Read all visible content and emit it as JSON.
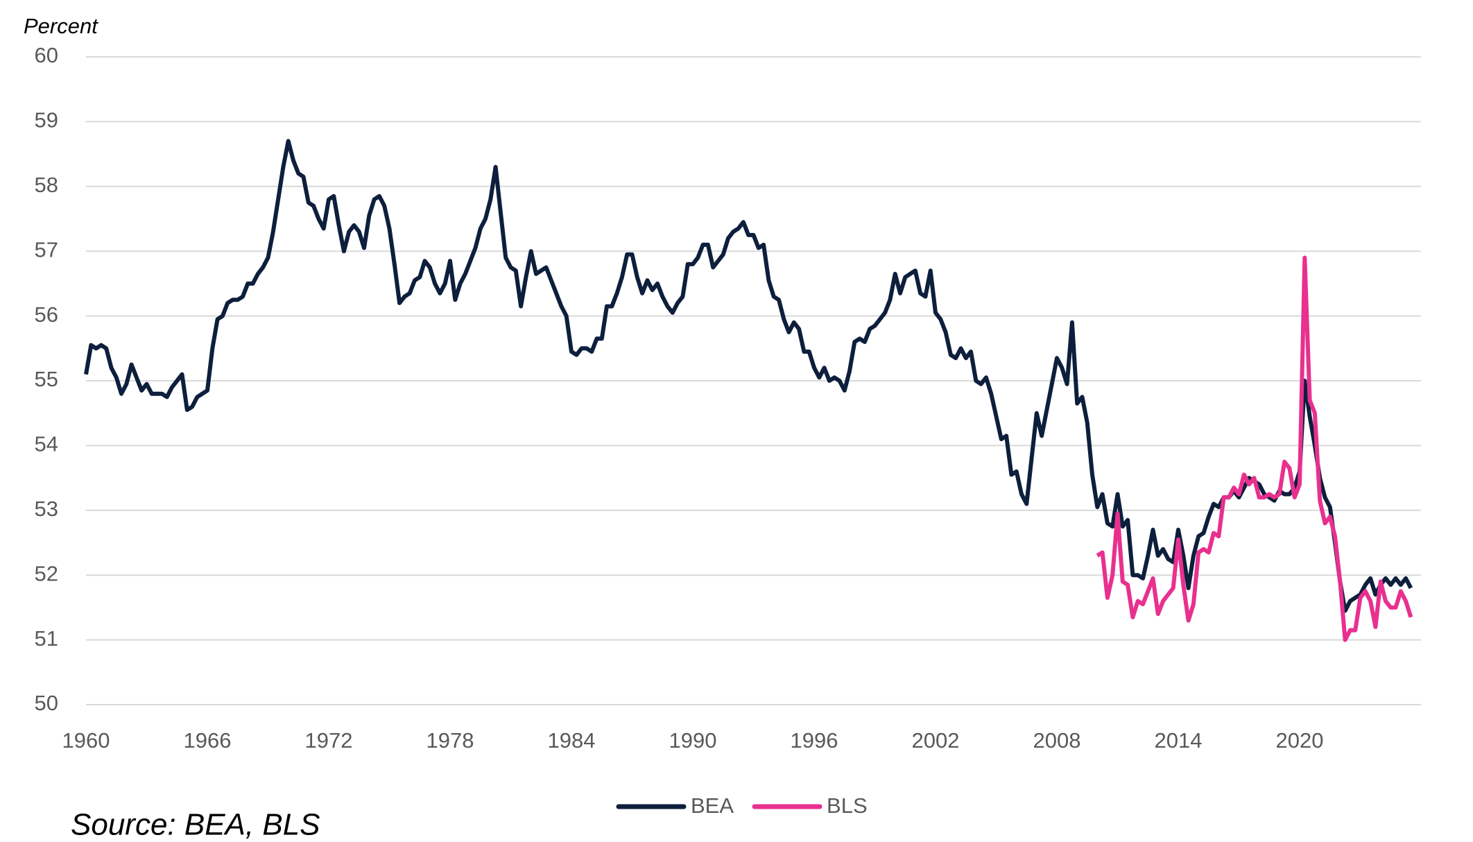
{
  "chart_data": {
    "type": "line",
    "y_axis_label": "Percent",
    "source": "Source: BEA, BLS",
    "xlim": [
      1960,
      2026
    ],
    "xticks": [
      1960,
      1966,
      1972,
      1978,
      1984,
      1990,
      1996,
      2002,
      2008,
      2014,
      2020
    ],
    "ylim": [
      50,
      60
    ],
    "yticks": [
      50,
      51,
      52,
      53,
      54,
      55,
      56,
      57,
      58,
      59,
      60
    ],
    "grid": true,
    "legend": "bottom",
    "series": [
      {
        "name": "BEA",
        "color": "#0d1f3c",
        "x": [
          1960,
          1960.25,
          1960.5,
          1960.75,
          1961,
          1961.25,
          1961.5,
          1961.75,
          1962,
          1962.25,
          1962.5,
          1962.75,
          1963,
          1963.25,
          1963.5,
          1963.75,
          1964,
          1964.25,
          1964.5,
          1964.75,
          1965,
          1965.25,
          1965.5,
          1965.75,
          1966,
          1966.25,
          1966.5,
          1966.75,
          1967,
          1967.25,
          1967.5,
          1967.75,
          1968,
          1968.25,
          1968.5,
          1968.75,
          1969,
          1969.25,
          1969.5,
          1969.75,
          1970,
          1970.25,
          1970.5,
          1970.75,
          1971,
          1971.25,
          1971.5,
          1971.75,
          1972,
          1972.25,
          1972.5,
          1972.75,
          1973,
          1973.25,
          1973.5,
          1973.75,
          1974,
          1974.25,
          1974.5,
          1974.75,
          1975,
          1975.25,
          1975.5,
          1975.75,
          1976,
          1976.25,
          1976.5,
          1976.75,
          1977,
          1977.25,
          1977.5,
          1977.75,
          1978,
          1978.25,
          1978.5,
          1978.75,
          1979,
          1979.25,
          1979.5,
          1979.75,
          1980,
          1980.25,
          1980.5,
          1980.75,
          1981,
          1981.25,
          1981.5,
          1981.75,
          1982,
          1982.25,
          1982.5,
          1982.75,
          1983,
          1983.25,
          1983.5,
          1983.75,
          1984,
          1984.25,
          1984.5,
          1984.75,
          1985,
          1985.25,
          1985.5,
          1985.75,
          1986,
          1986.25,
          1986.5,
          1986.75,
          1987,
          1987.25,
          1987.5,
          1987.75,
          1988,
          1988.25,
          1988.5,
          1988.75,
          1989,
          1989.25,
          1989.5,
          1989.75,
          1990,
          1990.25,
          1990.5,
          1990.75,
          1991,
          1991.25,
          1991.5,
          1991.75,
          1992,
          1992.25,
          1992.5,
          1992.75,
          1993,
          1993.25,
          1993.5,
          1993.75,
          1994,
          1994.25,
          1994.5,
          1994.75,
          1995,
          1995.25,
          1995.5,
          1995.75,
          1996,
          1996.25,
          1996.5,
          1996.75,
          1997,
          1997.25,
          1997.5,
          1997.75,
          1998,
          1998.25,
          1998.5,
          1998.75,
          1999,
          1999.25,
          1999.5,
          1999.75,
          2000,
          2000.25,
          2000.5,
          2000.75,
          2001,
          2001.25,
          2001.5,
          2001.75,
          2002,
          2002.25,
          2002.5,
          2002.75,
          2003,
          2003.25,
          2003.5,
          2003.75,
          2004,
          2004.25,
          2004.5,
          2004.75,
          2005,
          2005.25,
          2005.5,
          2005.75,
          2006,
          2006.25,
          2006.5,
          2006.75,
          2007,
          2007.25,
          2007.5,
          2007.75,
          2008,
          2008.25,
          2008.5,
          2008.75,
          2009,
          2009.25,
          2009.5,
          2009.75,
          2010,
          2010.25,
          2010.5,
          2010.75,
          2011,
          2011.25,
          2011.5,
          2011.75,
          2012,
          2012.25,
          2012.5,
          2012.75,
          2013,
          2013.25,
          2013.5,
          2013.75,
          2014,
          2014.25,
          2014.5,
          2014.75,
          2015,
          2015.25,
          2015.5,
          2015.75,
          2016,
          2016.25,
          2016.5,
          2016.75,
          2017,
          2017.25,
          2017.5,
          2017.75,
          2018,
          2018.25,
          2018.5,
          2018.75,
          2019,
          2019.25,
          2019.5,
          2019.75,
          2020,
          2020.25,
          2020.5,
          2020.75,
          2021,
          2021.25,
          2021.5,
          2021.75,
          2022,
          2022.25,
          2022.5,
          2022.75,
          2023,
          2023.25,
          2023.5,
          2023.75,
          2024,
          2024.25,
          2024.5,
          2024.75,
          2025,
          2025.25,
          2025.5
        ],
        "values": [
          55.1,
          55.55,
          55.5,
          55.55,
          55.5,
          55.2,
          55.05,
          54.8,
          54.95,
          55.25,
          55.05,
          54.85,
          54.95,
          54.8,
          54.8,
          54.8,
          54.75,
          54.9,
          55.0,
          55.1,
          54.55,
          54.6,
          54.75,
          54.8,
          54.85,
          55.5,
          55.95,
          56.0,
          56.2,
          56.25,
          56.25,
          56.3,
          56.5,
          56.5,
          56.65,
          56.75,
          56.9,
          57.3,
          57.8,
          58.3,
          58.7,
          58.4,
          58.2,
          58.15,
          57.75,
          57.7,
          57.5,
          57.35,
          57.8,
          57.85,
          57.4,
          57.0,
          57.3,
          57.4,
          57.3,
          57.05,
          57.55,
          57.8,
          57.85,
          57.7,
          57.35,
          56.8,
          56.2,
          56.3,
          56.35,
          56.55,
          56.6,
          56.85,
          56.75,
          56.5,
          56.35,
          56.5,
          56.85,
          56.25,
          56.5,
          56.65,
          56.85,
          57.05,
          57.35,
          57.5,
          57.8,
          58.3,
          57.6,
          56.9,
          56.75,
          56.7,
          56.15,
          56.6,
          57.0,
          56.65,
          56.7,
          56.75,
          56.55,
          56.35,
          56.15,
          56.0,
          55.45,
          55.4,
          55.5,
          55.5,
          55.45,
          55.65,
          55.65,
          56.15,
          56.15,
          56.35,
          56.6,
          56.95,
          56.95,
          56.6,
          56.35,
          56.55,
          56.4,
          56.5,
          56.3,
          56.15,
          56.05,
          56.2,
          56.3,
          56.8,
          56.8,
          56.9,
          57.1,
          57.1,
          56.75,
          56.85,
          56.95,
          57.2,
          57.3,
          57.35,
          57.45,
          57.25,
          57.25,
          57.05,
          57.1,
          56.55,
          56.3,
          56.25,
          55.95,
          55.75,
          55.9,
          55.8,
          55.45,
          55.45,
          55.2,
          55.05,
          55.2,
          55.0,
          55.05,
          55.0,
          54.85,
          55.15,
          55.6,
          55.65,
          55.6,
          55.8,
          55.85,
          55.95,
          56.05,
          56.25,
          56.65,
          56.35,
          56.6,
          56.65,
          56.7,
          56.35,
          56.3,
          56.7,
          56.05,
          55.95,
          55.75,
          55.4,
          55.35,
          55.5,
          55.35,
          55.45,
          55.0,
          54.95,
          55.05,
          54.8,
          54.45,
          54.1,
          54.15,
          53.55,
          53.6,
          53.25,
          53.1,
          53.8,
          54.5,
          54.15,
          54.55,
          54.95,
          55.35,
          55.2,
          54.95,
          55.9,
          54.65,
          54.75,
          54.35,
          53.55,
          53.05,
          53.25,
          52.8,
          52.75,
          53.25,
          52.75,
          52.85,
          52.0,
          52.0,
          51.95,
          52.3,
          52.7,
          52.3,
          52.4,
          52.25,
          52.2,
          52.7,
          52.3,
          51.8,
          52.3,
          52.6,
          52.65,
          52.9,
          53.1,
          53.05,
          53.2,
          53.2,
          53.3,
          53.2,
          53.35,
          53.5,
          53.45,
          53.4,
          53.25,
          53.2,
          53.15,
          53.3,
          53.25,
          53.25,
          53.35,
          53.6,
          55.0,
          54.45,
          54.0,
          53.5,
          53.2,
          53.05,
          52.5,
          51.9,
          51.45,
          51.6,
          51.65,
          51.7,
          51.85,
          51.95,
          51.7,
          51.85,
          51.95,
          51.85,
          51.95,
          51.85,
          51.95,
          51.8
        ]
      },
      {
        "name": "BLS",
        "color": "#e8308f",
        "x": [
          2010,
          2010.25,
          2010.5,
          2010.75,
          2011,
          2011.25,
          2011.5,
          2011.75,
          2012,
          2012.25,
          2012.5,
          2012.75,
          2013,
          2013.25,
          2013.5,
          2013.75,
          2014,
          2014.25,
          2014.5,
          2014.75,
          2015,
          2015.25,
          2015.5,
          2015.75,
          2016,
          2016.25,
          2016.5,
          2016.75,
          2017,
          2017.25,
          2017.5,
          2017.75,
          2018,
          2018.25,
          2018.5,
          2018.75,
          2019,
          2019.25,
          2019.5,
          2019.75,
          2020,
          2020.25,
          2020.5,
          2020.75,
          2021,
          2021.25,
          2021.5,
          2021.75,
          2022,
          2022.25,
          2022.5,
          2022.75,
          2023,
          2023.25,
          2023.5,
          2023.75,
          2024,
          2024.25,
          2024.5,
          2024.75,
          2025,
          2025.25,
          2025.5
        ],
        "values": [
          52.3,
          52.35,
          51.65,
          52.0,
          52.95,
          51.9,
          51.85,
          51.35,
          51.6,
          51.55,
          51.75,
          51.95,
          51.4,
          51.6,
          51.7,
          51.8,
          52.55,
          51.85,
          51.3,
          51.55,
          52.35,
          52.4,
          52.35,
          52.65,
          52.6,
          53.2,
          53.2,
          53.35,
          53.25,
          53.55,
          53.4,
          53.5,
          53.2,
          53.2,
          53.25,
          53.2,
          53.25,
          53.75,
          53.65,
          53.2,
          53.4,
          56.9,
          54.7,
          54.5,
          53.15,
          52.8,
          52.9,
          52.6,
          51.9,
          51.0,
          51.15,
          51.15,
          51.65,
          51.75,
          51.6,
          51.2,
          51.9,
          51.6,
          51.5,
          51.5,
          51.75,
          51.6,
          51.35
        ]
      }
    ]
  }
}
